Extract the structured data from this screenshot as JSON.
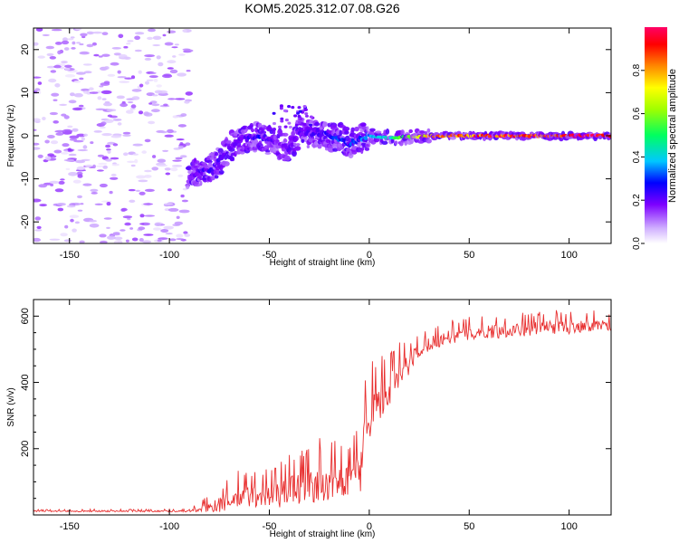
{
  "chart_data": [
    {
      "type": "heatmap",
      "title": "KOM5.2025.312.07.08.G26",
      "xlabel": "Height of straight line (km)",
      "ylabel": "Frequency (Hz)",
      "xlim": [
        -168,
        121
      ],
      "ylim": [
        -25,
        25
      ],
      "xticks": [
        -150,
        -100,
        -50,
        0,
        50,
        100
      ],
      "yticks": [
        -20,
        -10,
        0,
        10,
        20
      ],
      "colorbar": {
        "label": "Normalized spectral amplitude",
        "range": [
          0.0,
          1.0
        ],
        "ticks": [
          0.0,
          0.2,
          0.4,
          0.6,
          0.8
        ],
        "tick_labels": [
          "0.0",
          "0.2",
          "0.4",
          "0.6",
          "0.8"
        ]
      },
      "ridge": {
        "x": [
          -90,
          -85,
          -80,
          -75,
          -70,
          -65,
          -60,
          -55,
          -50,
          -45,
          -40,
          -35,
          -30,
          -25,
          -20,
          -15,
          -10,
          -5,
          0,
          10,
          20,
          30,
          50,
          70,
          90,
          110,
          121
        ],
        "freq": [
          -9,
          -8.5,
          -8,
          -6,
          -3,
          -1,
          -0.5,
          0,
          -1,
          -2,
          -3,
          1,
          0.5,
          0.5,
          0,
          -0.5,
          -2,
          -1,
          0,
          -0.5,
          -0.3,
          0,
          0,
          0,
          0,
          0,
          0
        ],
        "amplitude": [
          0.15,
          0.2,
          0.22,
          0.2,
          0.18,
          0.2,
          0.22,
          0.25,
          0.2,
          0.15,
          0.2,
          0.18,
          0.2,
          0.22,
          0.25,
          0.3,
          0.28,
          0.32,
          0.35,
          0.45,
          0.6,
          0.75,
          0.85,
          0.9,
          0.9,
          0.92,
          0.92
        ]
      },
      "noise_region_x": [
        -168,
        -90
      ],
      "noise_amplitude_range": [
        0.02,
        0.08
      ]
    },
    {
      "type": "line",
      "xlabel": "Height of straight line (km)",
      "ylabel": "SNR (v/v)",
      "xlim": [
        -168,
        121
      ],
      "ylim": [
        0,
        650
      ],
      "xticks": [
        -150,
        -100,
        -50,
        0,
        50,
        100
      ],
      "yticks": [
        200,
        400,
        600
      ],
      "series": [
        {
          "name": "SNR",
          "color": "#e83030",
          "x": [
            -168,
            -120,
            -90,
            -85,
            -80,
            -75,
            -70,
            -65,
            -60,
            -55,
            -50,
            -45,
            -40,
            -35,
            -30,
            -25,
            -20,
            -15,
            -10,
            -5,
            -2,
            0,
            2,
            5,
            10,
            15,
            20,
            25,
            30,
            35,
            40,
            50,
            60,
            70,
            80,
            90,
            100,
            110,
            121
          ],
          "mean": [
            12,
            12,
            12,
            18,
            25,
            35,
            45,
            55,
            60,
            62,
            65,
            70,
            80,
            90,
            95,
            100,
            105,
            110,
            115,
            130,
            250,
            320,
            330,
            350,
            380,
            420,
            460,
            500,
            520,
            530,
            540,
            550,
            555,
            560,
            565,
            570,
            570,
            575,
            575
          ],
          "amp": [
            4,
            5,
            5,
            20,
            30,
            45,
            55,
            70,
            70,
            60,
            80,
            80,
            90,
            100,
            100,
            110,
            100,
            95,
            90,
            160,
            180,
            150,
            120,
            120,
            110,
            90,
            60,
            45,
            40,
            40,
            40,
            40,
            40,
            40,
            40,
            40,
            40,
            35,
            35
          ]
        }
      ]
    }
  ]
}
